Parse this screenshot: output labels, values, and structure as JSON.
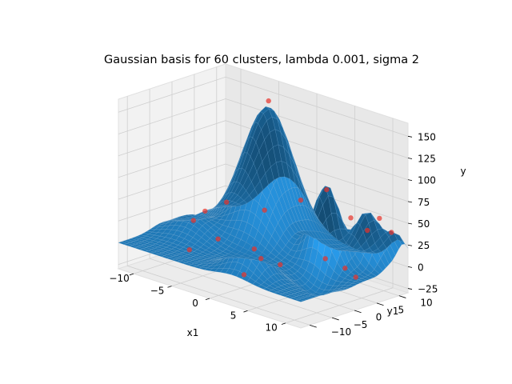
{
  "chart_data": {
    "type": "surface3d",
    "title": "Gaussian basis for 60 clusters, lambda 0.001, sigma 2",
    "xlabel": "x1",
    "ylabel": "y1",
    "zlabel": "y",
    "xlim": [
      -12,
      12
    ],
    "ylim": [
      -12,
      12
    ],
    "zlim": [
      -30,
      165
    ],
    "x_ticks": [
      -10,
      -5,
      0,
      5,
      10
    ],
    "x_tick_labels": [
      "−10",
      "−5",
      "0",
      "5",
      "10"
    ],
    "y_ticks": [
      -10,
      -5,
      0,
      5,
      10
    ],
    "y_tick_labels": [
      "−10",
      "−5",
      "0",
      "5",
      "10"
    ],
    "z_ticks": [
      -25,
      0,
      25,
      50,
      75,
      100,
      125,
      150
    ],
    "z_tick_labels": [
      "−25",
      "0",
      "25",
      "50",
      "75",
      "100",
      "125",
      "150"
    ],
    "grid": true,
    "surface_color": "#1f77b4",
    "point_color": "#e8322a",
    "surface_bumps": [
      {
        "x": -4,
        "y": 8,
        "height": 140,
        "spread": 3.0
      },
      {
        "x": -2,
        "y": 3,
        "height": 55,
        "spread": 2.5
      },
      {
        "x": 6,
        "y": 4,
        "height": 90,
        "spread": 1.6
      },
      {
        "x": 9,
        "y": 8,
        "height": 60,
        "spread": 1.5
      },
      {
        "x": 3,
        "y": -8,
        "height": 40,
        "spread": 2.0
      },
      {
        "x": -8,
        "y": -2,
        "height": 25,
        "spread": 2.5
      },
      {
        "x": 11,
        "y": 11,
        "height": 35,
        "spread": 1.4
      },
      {
        "x": 8,
        "y": -2,
        "height": -20,
        "spread": 2.0
      }
    ],
    "points": [
      {
        "x": -4,
        "y": 8,
        "z": 152
      },
      {
        "x": -6,
        "y": 2,
        "z": 40
      },
      {
        "x": -3,
        "y": -5,
        "z": 18
      },
      {
        "x": 1,
        "y": -6,
        "z": -10
      },
      {
        "x": 4,
        "y": -3,
        "z": 5
      },
      {
        "x": 6,
        "y": 4,
        "z": 85
      },
      {
        "x": 8,
        "y": 6,
        "z": 55
      },
      {
        "x": 9,
        "y": 8,
        "z": 40
      },
      {
        "x": 10,
        "y": 9,
        "z": 55
      },
      {
        "x": 11,
        "y": 10,
        "z": 40
      },
      {
        "x": 7,
        "y": 2,
        "z": 12
      },
      {
        "x": 9,
        "y": 3,
        "z": 5
      },
      {
        "x": -8,
        "y": -2,
        "z": 20
      },
      {
        "x": -10,
        "y": 4,
        "z": 15
      },
      {
        "x": -1,
        "y": 2,
        "z": 45
      },
      {
        "x": 2,
        "y": 5,
        "z": 60
      },
      {
        "x": 0,
        "y": -2,
        "z": 10
      },
      {
        "x": -5,
        "y": -8,
        "z": 5
      },
      {
        "x": 5,
        "y": -9,
        "z": 25
      },
      {
        "x": 11,
        "y": 2,
        "z": 2
      }
    ]
  }
}
